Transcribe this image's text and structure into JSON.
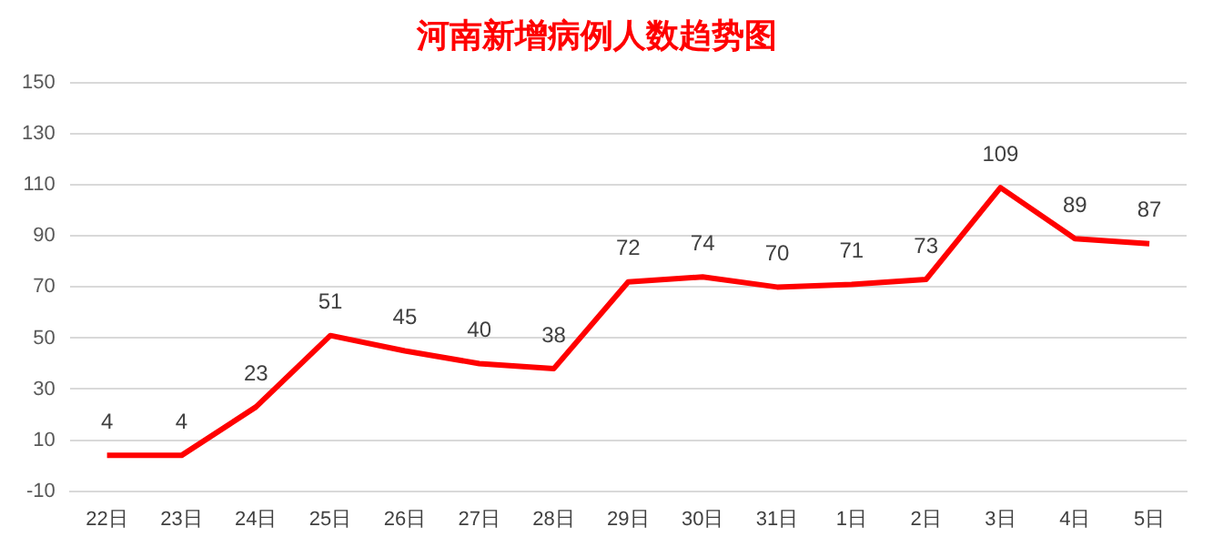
{
  "chart_data": {
    "type": "line",
    "title": "河南新增病例人数趋势图",
    "categories": [
      "22日",
      "23日",
      "24日",
      "25日",
      "26日",
      "27日",
      "28日",
      "29日",
      "30日",
      "31日",
      "1日",
      "2日",
      "3日",
      "4日",
      "5日"
    ],
    "series": [
      {
        "color": "#ff0000",
        "values": [
          4,
          4,
          23,
          51,
          45,
          40,
          38,
          72,
          74,
          70,
          71,
          73,
          109,
          89,
          87
        ]
      }
    ],
    "ylim": [
      -10,
      150
    ],
    "yticks": [
      -10,
      10,
      30,
      50,
      70,
      90,
      110,
      130,
      150
    ],
    "grid": "y",
    "legend": false,
    "data_labels": true,
    "marker": "none",
    "line_style": "solid"
  }
}
